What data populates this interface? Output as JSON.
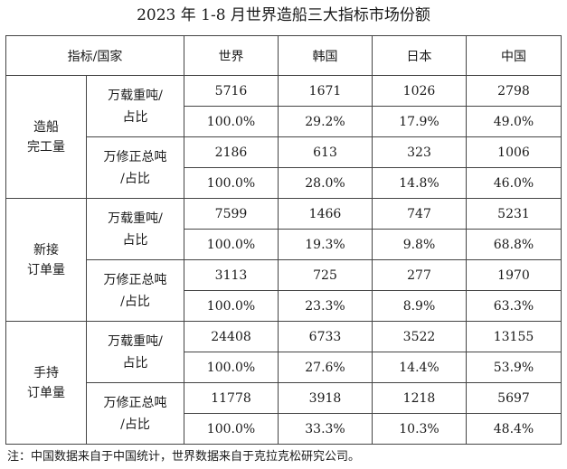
{
  "title": "2023 年 1-8 月世界造船三大指标市场份额",
  "header": [
    "指标/国家",
    "世界",
    "韩国",
    "日本",
    "中国"
  ],
  "groups": [
    {
      "category_lines": [
        "造船",
        "完工量"
      ],
      "metrics": [
        {
          "label_lines": [
            "万载重吨/",
            "占比"
          ],
          "values": [
            "5716",
            "1671",
            "1026",
            "2798"
          ],
          "shares": [
            "100.0%",
            "29.2%",
            "17.9%",
            "49.0%"
          ]
        },
        {
          "label_lines": [
            "万修正总吨",
            "/占比"
          ],
          "values": [
            "2186",
            "613",
            "323",
            "1006"
          ],
          "shares": [
            "100.0%",
            "28.0%",
            "14.8%",
            "46.0%"
          ]
        }
      ]
    },
    {
      "category_lines": [
        "新接",
        "订单量"
      ],
      "metrics": [
        {
          "label_lines": [
            "万载重吨/",
            "占比"
          ],
          "values": [
            "7599",
            "1466",
            "747",
            "5231"
          ],
          "shares": [
            "100.0%",
            "19.3%",
            "9.8%",
            "68.8%"
          ]
        },
        {
          "label_lines": [
            "万修正总吨",
            "/占比"
          ],
          "values": [
            "3113",
            "725",
            "277",
            "1970"
          ],
          "shares": [
            "100.0%",
            "23.3%",
            "8.9%",
            "63.3%"
          ]
        }
      ]
    },
    {
      "category_lines": [
        "手持",
        "订单量"
      ],
      "metrics": [
        {
          "label_lines": [
            "万载重吨/",
            "占比"
          ],
          "values": [
            "24408",
            "6733",
            "3522",
            "13155"
          ],
          "shares": [
            "100.0%",
            "27.6%",
            "14.4%",
            "53.9%"
          ]
        },
        {
          "label_lines": [
            "万修正总吨",
            "/占比"
          ],
          "values": [
            "11778",
            "3918",
            "1218",
            "5697"
          ],
          "shares": [
            "100.0%",
            "33.3%",
            "10.3%",
            "48.4%"
          ]
        }
      ]
    }
  ],
  "note": "注：中国数据来自于中国统计，世界数据来自于克拉克松研究公司。"
}
